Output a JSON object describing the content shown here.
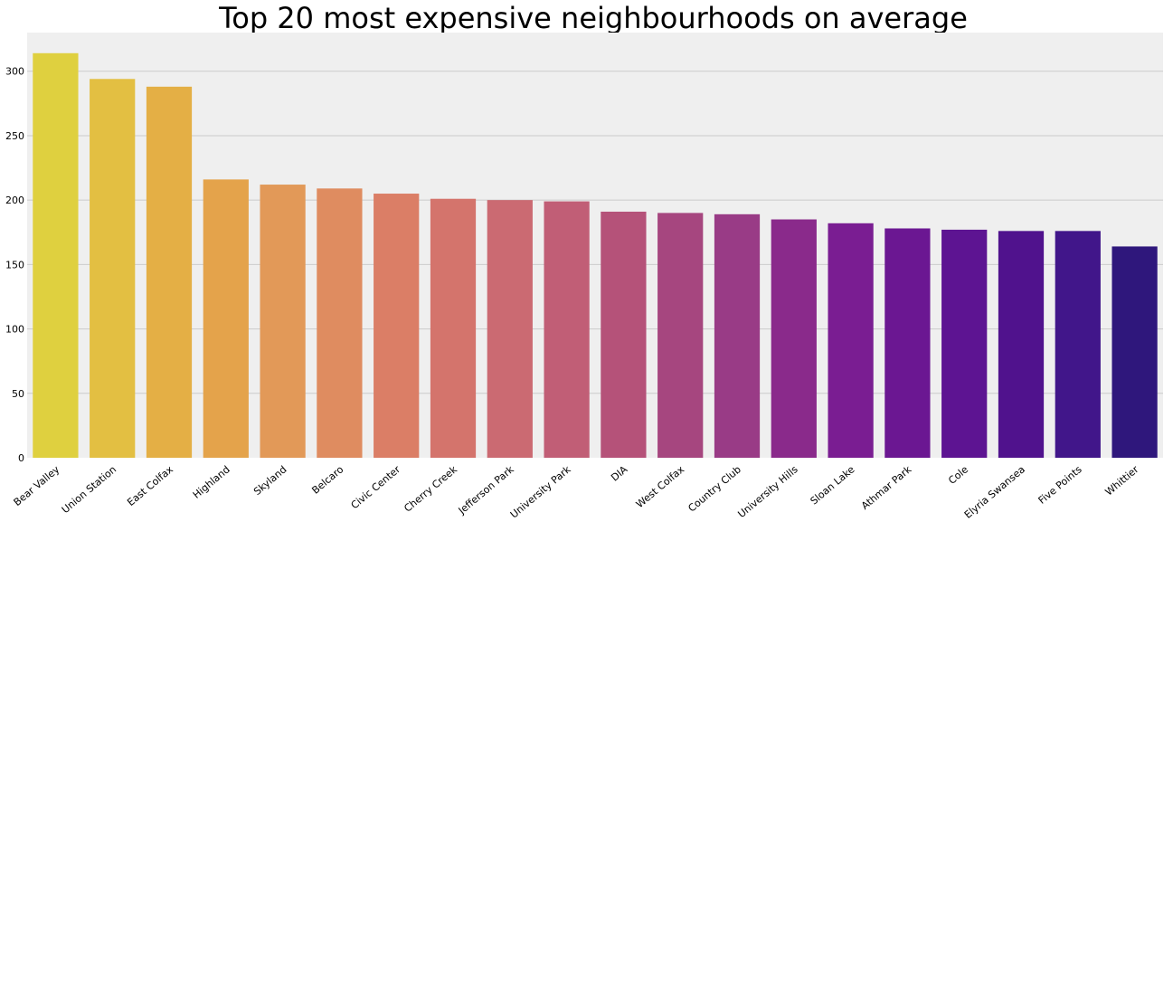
{
  "chart_data": {
    "type": "bar",
    "title": "Top 20 most expensive neighbourhoods on average",
    "xlabel": "",
    "ylabel": "",
    "categories": [
      "Bear Valley",
      "Union Station",
      "East Colfax",
      "Highland",
      "Skyland",
      "Belcaro",
      "Civic Center",
      "Cherry Creek",
      "Jefferson Park",
      "University Park",
      "DIA",
      "West Colfax",
      "Country Club",
      "University Hills",
      "Sloan Lake",
      "Athmar Park",
      "Cole",
      "Elyria Swansea",
      "Five Points",
      "Whittier"
    ],
    "values": [
      314,
      294,
      288,
      216,
      212,
      209,
      205,
      201,
      200,
      199,
      191,
      190,
      189,
      185,
      182,
      178,
      177,
      176,
      176,
      164
    ],
    "ylim": [
      0,
      330
    ],
    "yticks": [
      0,
      50,
      100,
      150,
      200,
      250,
      300
    ],
    "grid": true,
    "colors": [
      "#dfd03f",
      "#e3bf42",
      "#e4af45",
      "#e4a34b",
      "#e29958",
      "#df8c60",
      "#db7e66",
      "#d4746c",
      "#cb6a72",
      "#c15e76",
      "#b55279",
      "#a6467f",
      "#993b86",
      "#8a2a8b",
      "#7a1d92",
      "#6b1792",
      "#5d1492",
      "#50128d",
      "#41168a",
      "#2f177c"
    ],
    "background": "#efefef",
    "grid_color": "#cbcbcb"
  }
}
